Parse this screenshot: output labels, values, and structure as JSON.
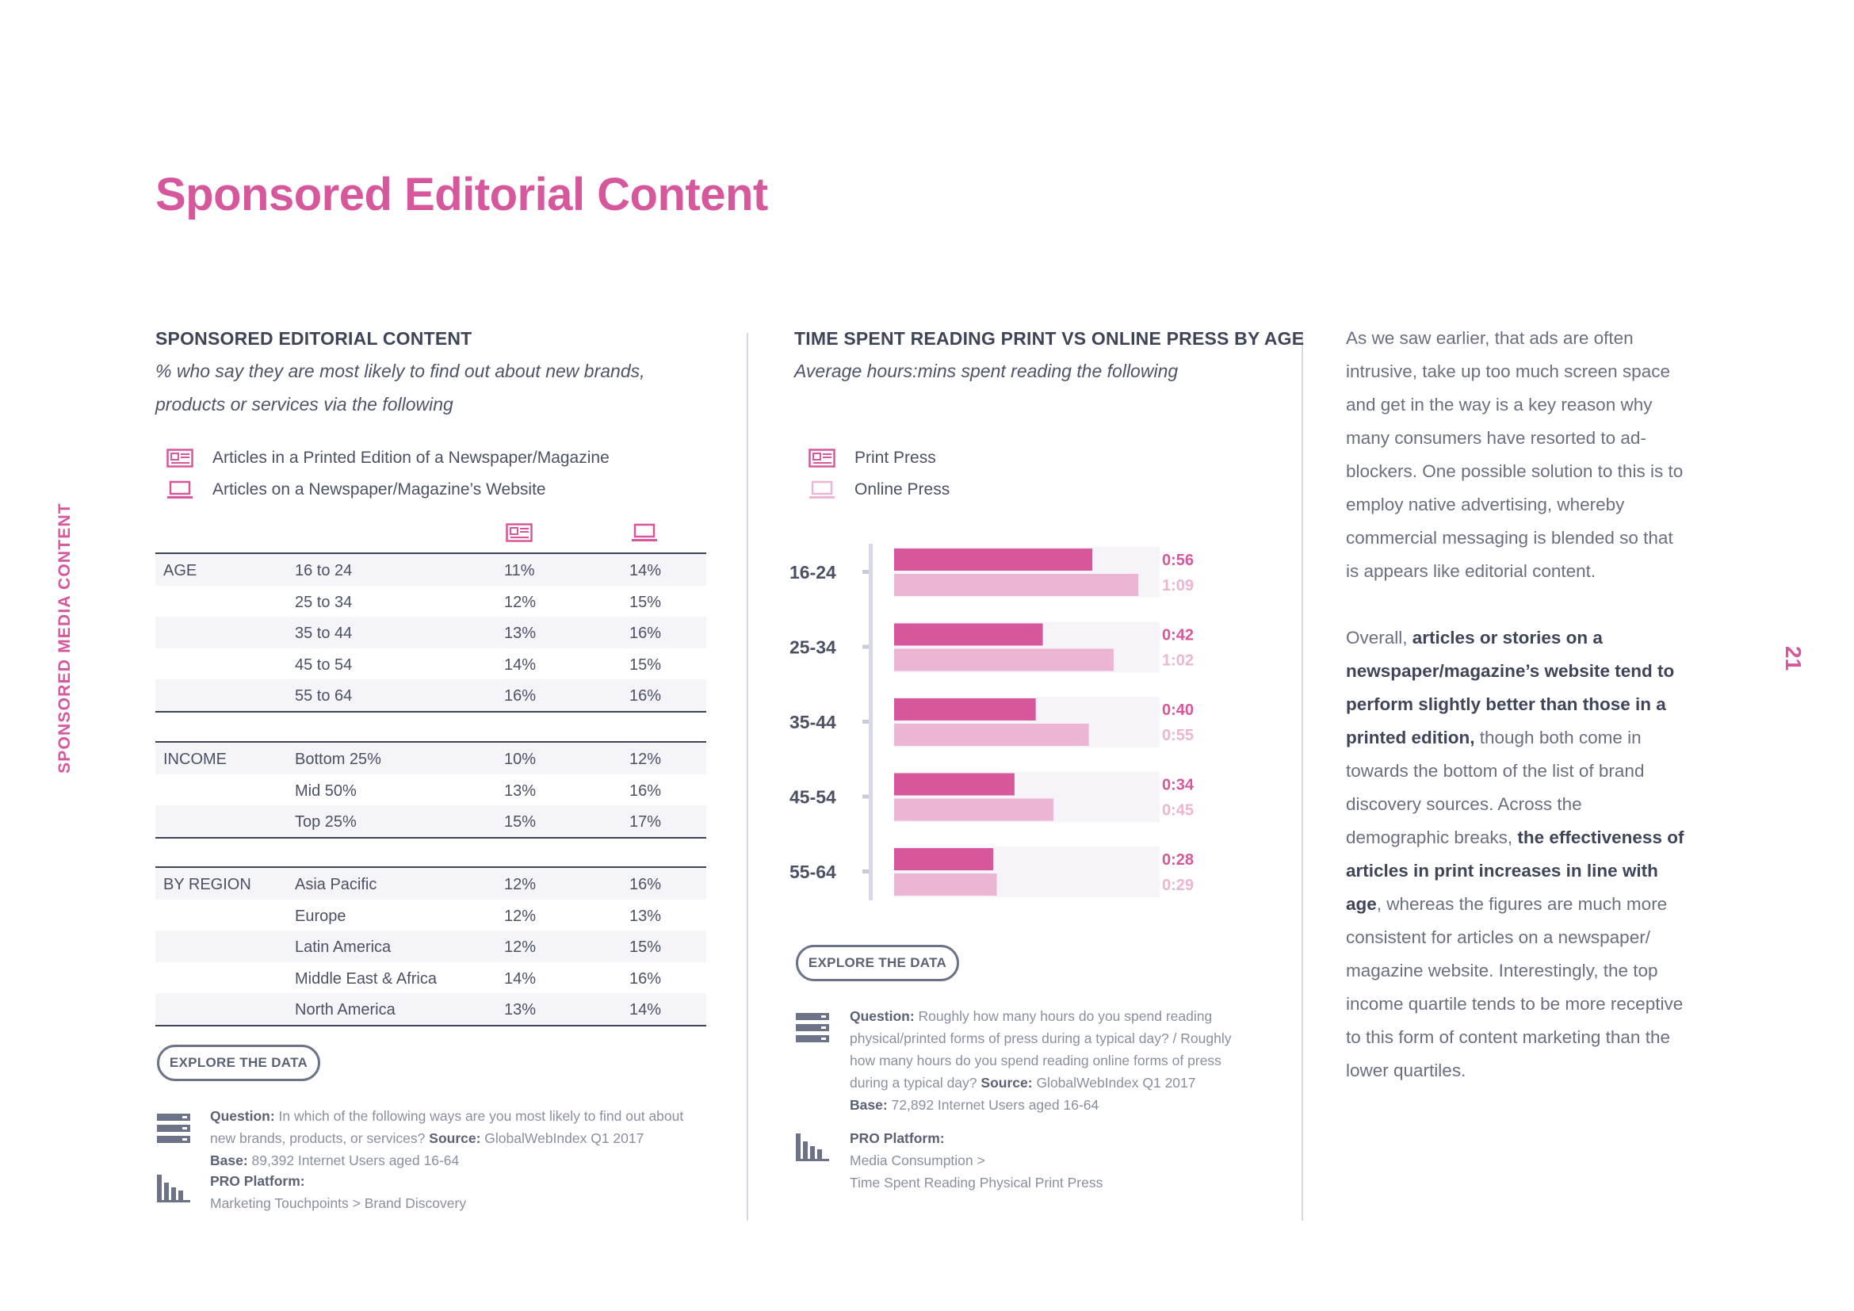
{
  "page": {
    "title": "Sponsored Editorial Content",
    "side_label": "SPONSORED MEDIA CONTENT",
    "page_number": "21"
  },
  "left_panel": {
    "title": "SPONSORED EDITORIAL CONTENT",
    "subtitle_line1": "% who say they are most likely to find out about new brands,",
    "subtitle_line2": "products or services via the following",
    "legend": [
      {
        "icon": "newspaper-icon",
        "label": "Articles in a Printed Edition of a Newspaper/Magazine"
      },
      {
        "icon": "laptop-icon",
        "label": "Articles on a Newspaper/Magazine’s Website"
      }
    ],
    "groups": [
      {
        "category": "AGE",
        "rows": [
          {
            "label": "16 to 24",
            "print": "11%",
            "online": "14%"
          },
          {
            "label": "25 to 34",
            "print": "12%",
            "online": "15%"
          },
          {
            "label": "35 to 44",
            "print": "13%",
            "online": "16%"
          },
          {
            "label": "45 to 54",
            "print": "14%",
            "online": "15%"
          },
          {
            "label": "55 to 64",
            "print": "16%",
            "online": "16%"
          }
        ]
      },
      {
        "category": "INCOME",
        "rows": [
          {
            "label": "Bottom 25%",
            "print": "10%",
            "online": "12%"
          },
          {
            "label": "Mid 50%",
            "print": "13%",
            "online": "16%"
          },
          {
            "label": "Top 25%",
            "print": "15%",
            "online": "17%"
          }
        ]
      },
      {
        "category": "BY REGION",
        "rows": [
          {
            "label": "Asia Pacific",
            "print": "12%",
            "online": "16%"
          },
          {
            "label": "Europe",
            "print": "12%",
            "online": "13%"
          },
          {
            "label": "Latin America",
            "print": "12%",
            "online": "15%"
          },
          {
            "label": "Middle East & Africa",
            "print": "14%",
            "online": "16%"
          },
          {
            "label": "North America",
            "print": "13%",
            "online": "14%"
          }
        ]
      }
    ],
    "explore_label": "EXPLORE THE DATA",
    "question_label": "Question:",
    "question_text_1": "In which of the following ways are you most likely to find out about",
    "question_text_2": "new brands, products, or services?",
    "source_label": "Source:",
    "source_text": "GlobalWebIndex Q1 2017",
    "base_label": "Base:",
    "base_text": "89,392 Internet Users aged 16-64",
    "pro_label": "PRO Platform:",
    "pro_text": "Marketing Touchpoints > Brand Discovery"
  },
  "middle_panel": {
    "title": "TIME SPENT READING PRINT VS ONLINE PRESS BY AGE",
    "subtitle": "Average hours:mins spent reading the following",
    "legend": [
      {
        "icon": "newspaper-icon",
        "label": "Print Press"
      },
      {
        "icon": "laptop-icon",
        "label": "Online Press"
      }
    ],
    "explore_label": "EXPLORE THE DATA",
    "question_label": "Question:",
    "question_text_1": "Roughly how many hours do you spend reading",
    "question_text_2": "physical/printed forms of press during a typical day? / Roughly",
    "question_text_3": "how many hours do you spend reading online forms of press",
    "question_text_4": "during a typical day?",
    "source_label": "Source:",
    "source_text": "GlobalWebIndex Q1 2017",
    "base_label": "Base:",
    "base_text": "72,892 Internet Users aged 16-64",
    "pro_label": "PRO Platform:",
    "pro_text_1": "Media Consumption >",
    "pro_text_2": "Time Spent Reading Physical Print Press"
  },
  "chart_data": {
    "type": "bar",
    "orientation": "horizontal",
    "title": "TIME SPENT READING PRINT VS ONLINE PRESS BY AGE",
    "subtitle": "Average hours:mins spent reading the following",
    "categories": [
      "16-24",
      "25-34",
      "35-44",
      "45-54",
      "55-64"
    ],
    "unit": "minutes",
    "xlim": [
      0,
      75
    ],
    "series": [
      {
        "name": "Print Press",
        "color": "#d7579c",
        "values": [
          56,
          42,
          40,
          34,
          28
        ],
        "labels": [
          "0:56",
          "0:42",
          "0:40",
          "0:34",
          "0:28"
        ]
      },
      {
        "name": "Online Press",
        "color": "#ebb5d3",
        "values": [
          69,
          62,
          55,
          45,
          29
        ],
        "labels": [
          "1:09",
          "1:02",
          "0:55",
          "0:45",
          "0:29"
        ]
      }
    ]
  },
  "right_panel": {
    "para1": "As we saw earlier, that ads are often intrusive, take up too much screen space and get in the way is a key reason why many consumers have resorted to ad-blockers. One possible solution to this is to employ native advertising, whereby commercial messaging is blended so that is appears like editorial content.",
    "para2_a": "Overall, ",
    "para2_b": "articles or stories on a newspaper/magazine’s website tend to perform slightly better than those in a printed edition,",
    "para2_c": " though both come in towards the bottom of the list of brand discovery sources. Across the demographic breaks, ",
    "para2_d": "the effectiveness of articles in print increases in line with age",
    "para2_e": ", whereas the figures are much more consistent for articles on a newspaper/ magazine website. Interestingly, the top income quartile tends to be more receptive to this form of content marketing than the lower quartiles."
  },
  "colors": {
    "accent": "#d7579c",
    "accent_light": "#ebb5d3",
    "dark_text": "#3f4558",
    "muted_text": "#8a8fa0"
  }
}
